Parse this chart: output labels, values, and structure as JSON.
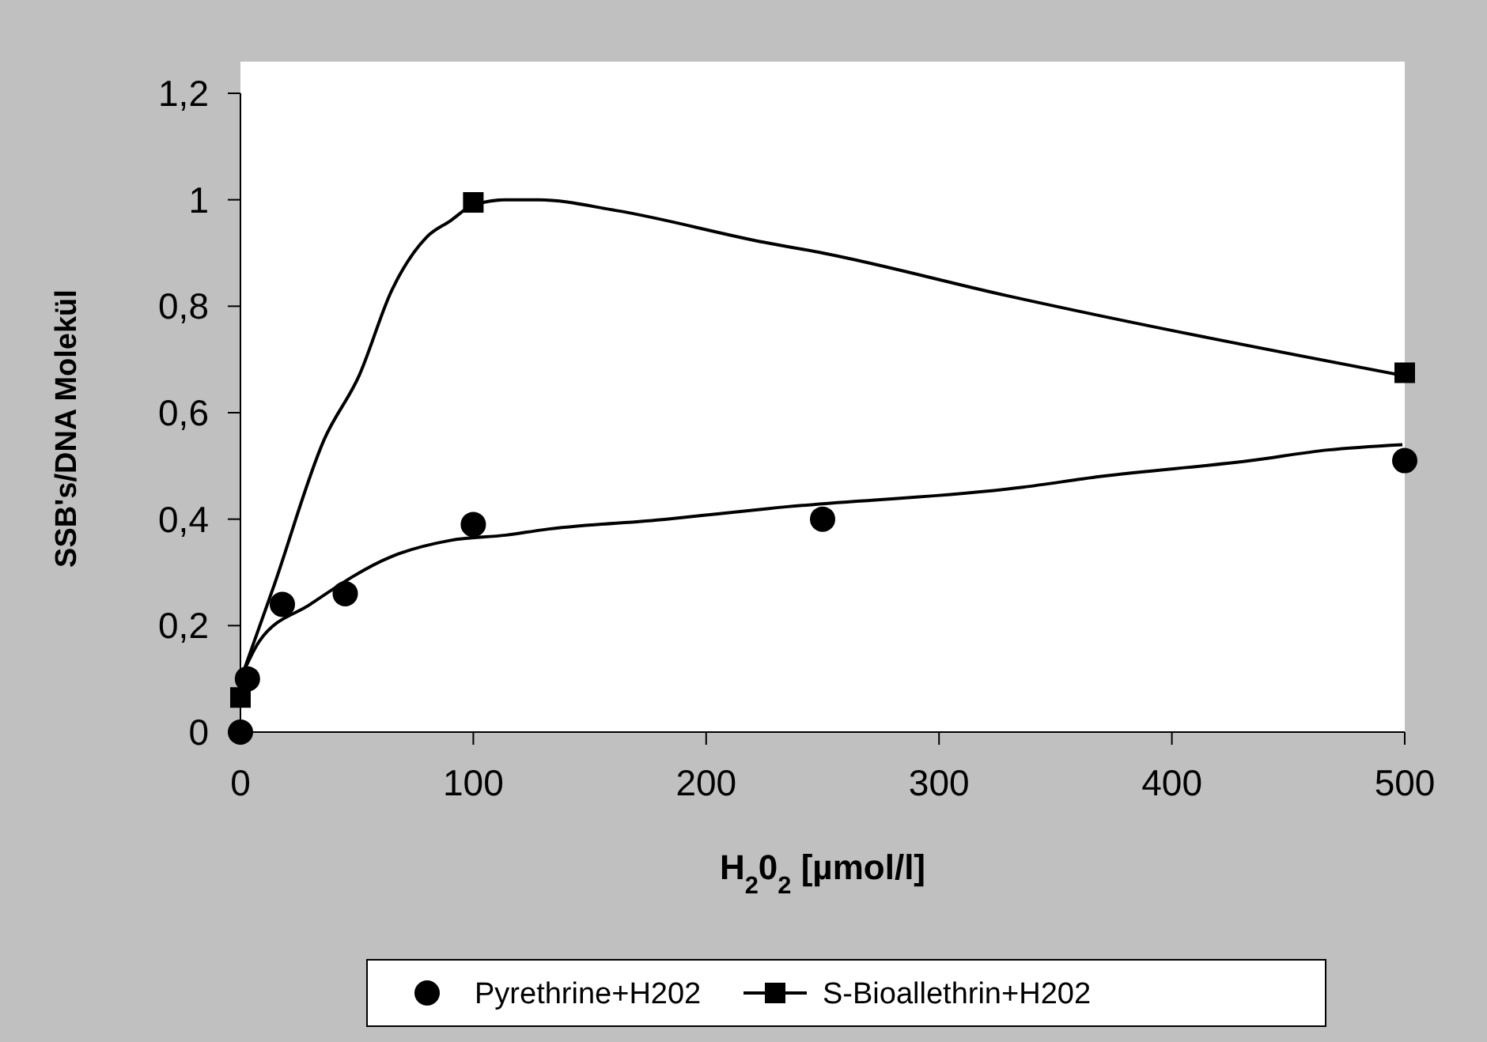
{
  "chart_data": {
    "type": "scatter",
    "xlabel": "H$_{2}$0$_{2}$ [µmol/l]",
    "ylabel": "SSB's/DNA Molekül",
    "xlim": [
      0,
      500
    ],
    "xticks": [
      0,
      100,
      200,
      300,
      400,
      500
    ],
    "ylim": [
      0,
      1.2
    ],
    "yticks": [
      0,
      {
        "value": 0.2,
        "label": "0,2"
      },
      {
        "value": 0.4,
        "label": "0,4"
      },
      {
        "value": 0.6,
        "label": "0,6"
      },
      {
        "value": 0.8,
        "label": "0,8"
      },
      1,
      {
        "value": 1.2,
        "label": "1,2"
      }
    ],
    "grid": false,
    "legend": "bottom",
    "series": [
      {
        "name": "Pyrethrine+H202",
        "marker": "circle",
        "color": "#000000",
        "x": [
          0,
          3,
          18,
          45,
          100,
          250,
          500
        ],
        "values": [
          0,
          0.1,
          0.24,
          0.26,
          0.39,
          0.4,
          0.51
        ]
      },
      {
        "type": "line",
        "marker": "none",
        "color": "#000000",
        "x": [
          1,
          8,
          30,
          65,
          90,
          114,
          130,
          183,
          205,
          227,
          336,
          369,
          434,
          467,
          499
        ],
        "values": [
          0.11,
          0.17,
          0.24,
          0.33,
          0.36,
          0.37,
          0.38,
          0.4,
          0.41,
          0.42,
          0.46,
          0.48,
          0.51,
          0.53,
          0.54
        ]
      },
      {
        "name": "S-Bioallethrin+H202",
        "marker": "square",
        "line_style": "solid",
        "color": "#000000",
        "x": [
          0,
          100,
          500
        ],
        "values": [
          0.065,
          0.995,
          0.675
        ]
      },
      {
        "type": "line",
        "marker": "none",
        "color": "#000000",
        "x": [
          1,
          14,
          36,
          51,
          65,
          80,
          90,
          100,
          114,
          128,
          161,
          225,
          250,
          329,
          499
        ],
        "values": [
          0.11,
          0.27,
          0.55,
          0.67,
          0.83,
          0.93,
          0.96,
          0.99,
          1,
          1,
          0.98,
          0.92,
          0.9,
          0.82,
          0.67
        ]
      }
    ]
  }
}
